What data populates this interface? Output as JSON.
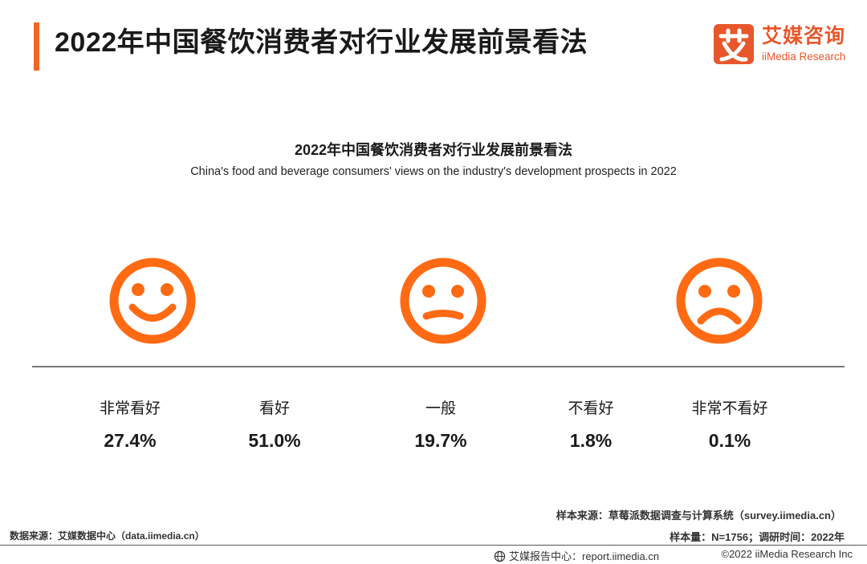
{
  "header": {
    "title": "2022年中国餐饮消费者对行业发展前景看法",
    "accent_color": "#f26522"
  },
  "logo": {
    "mark_char": "艾",
    "cn": "艾媒咨询",
    "en": "iiMedia Research",
    "color": "#e8572c"
  },
  "chart_data": {
    "type": "table",
    "title": "2022年中国餐饮消费者对行业发展前景看法",
    "subtitle": "China's food and beverage consumers' views on the industry's development prospects in 2022",
    "unit": "%",
    "categories": [
      "非常看好",
      "看好",
      "一般",
      "不看好",
      "非常不看好"
    ],
    "values": [
      27.4,
      51.0,
      19.7,
      1.8,
      0.1
    ],
    "value_labels": [
      "27.4%",
      "51.0%",
      "19.7%",
      "1.8%",
      "0.1%"
    ],
    "icons": [
      "smiley-face-icon",
      "neutral-face-icon",
      "sad-face-icon"
    ],
    "icon_color": "#ff6a13"
  },
  "footer": {
    "sample_source": "样本来源：草莓派数据调查与计算系统（survey.iimedia.cn）",
    "data_source": "数据来源：艾媒数据中心（data.iimedia.cn）",
    "sample_info": "样本量：N=1756；调研时间：2022年",
    "report_center": "艾媒报告中心：report.iimedia.cn",
    "copyright": "©2022  iiMedia Research  Inc"
  }
}
